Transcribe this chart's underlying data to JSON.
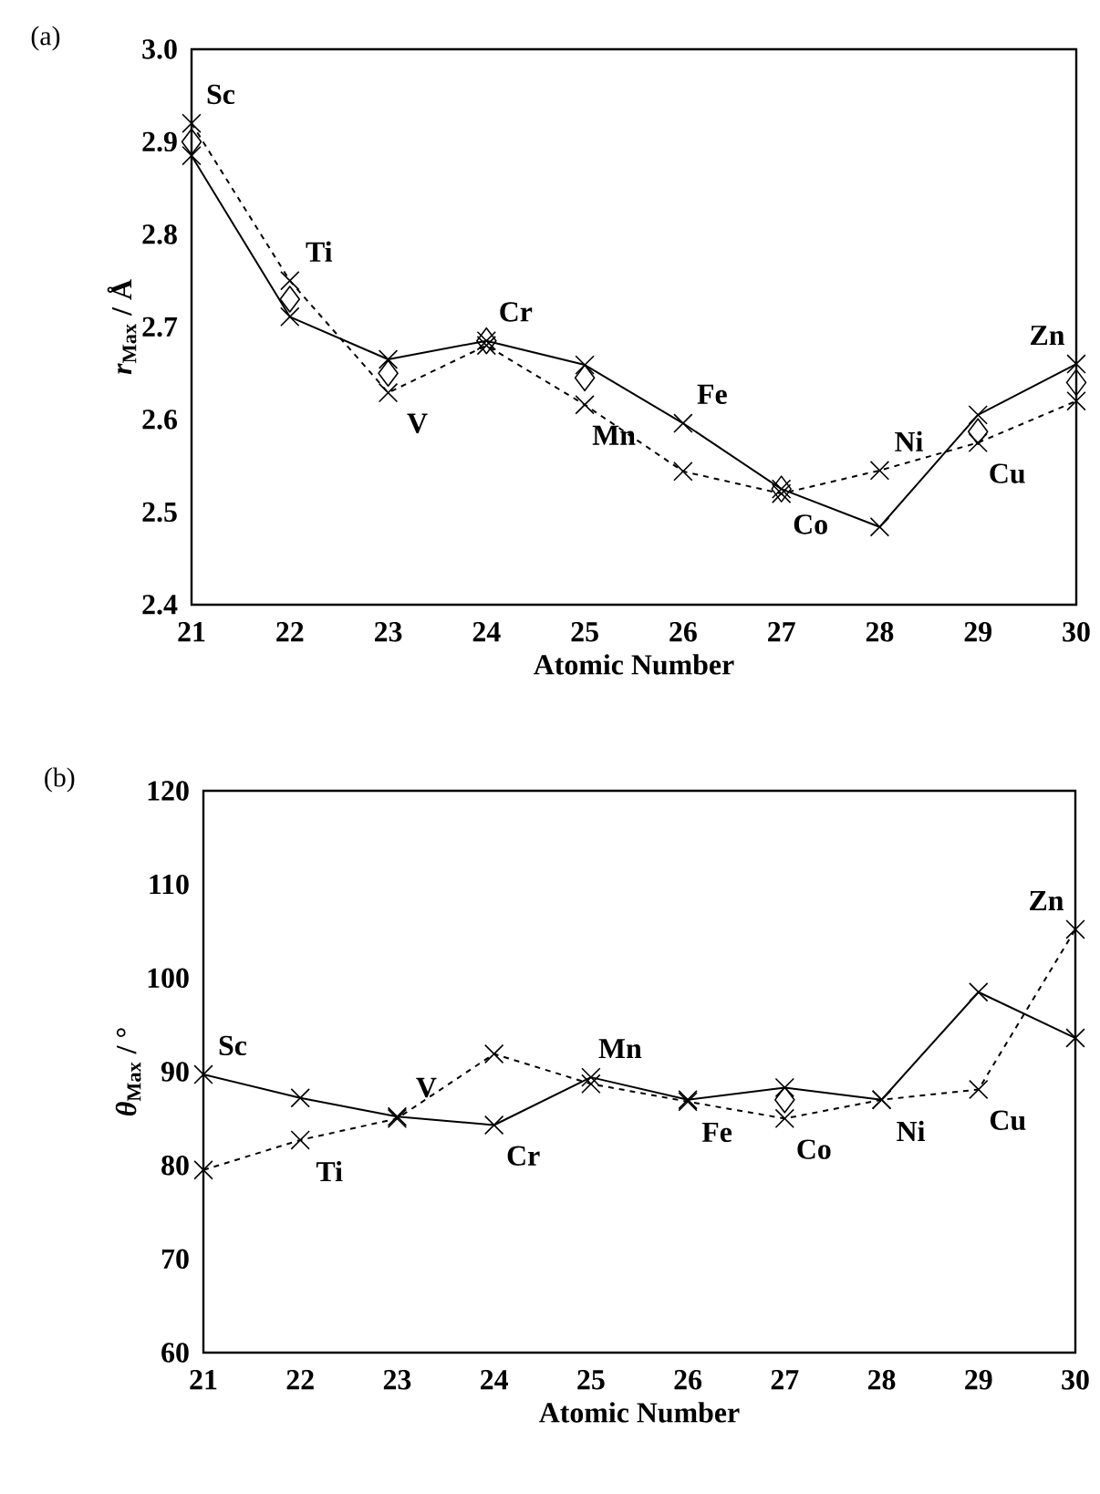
{
  "chart_data": [
    {
      "type": "line",
      "title": "(a)",
      "xlabel": "Atomic Number",
      "ylabel": "*r*$_{Max}$ / Å",
      "x": [
        21,
        22,
        23,
        24,
        25,
        26,
        27,
        28,
        29,
        30
      ],
      "xlim": [
        21,
        30
      ],
      "xticks": [
        21,
        22,
        23,
        24,
        25,
        26,
        27,
        28,
        29,
        30
      ],
      "ylim": [
        2.4,
        3.0
      ],
      "yticks": [
        2.4,
        2.5,
        2.6,
        2.7,
        2.8,
        2.9,
        {
          "value": 3.0,
          "label": "3.0"
        }
      ],
      "series": [
        {
          "color": "#000000",
          "line_style": "solid",
          "marker": "cross",
          "values": [
            2.885,
            2.711,
            2.665,
            2.685,
            2.659,
            2.596,
            2.525,
            2.484,
            2.605,
            2.66
          ]
        },
        {
          "color": "#000000",
          "line_style": "dashed",
          "marker": "cross",
          "values": [
            2.92,
            2.75,
            2.629,
            2.68,
            2.616,
            2.544,
            2.52,
            2.545,
            2.575,
            2.62
          ]
        },
        {
          "type": "scatter",
          "color": "#000000",
          "marker": "diamond",
          "values": [
            2.9,
            2.73,
            2.65,
            2.685,
            2.645,
            null,
            2.525,
            null,
            2.587,
            2.64
          ]
        }
      ],
      "annotations": [
        {
          "text": "Sc",
          "x": 21,
          "y": 2.92
        },
        {
          "text": "Ti",
          "x": 22,
          "y": 2.75
        },
        {
          "text": "V",
          "x": 23,
          "y": 2.629
        },
        {
          "text": "Cr",
          "x": 24,
          "y": 2.685
        },
        {
          "text": "Mn",
          "x": 25,
          "y": 2.616
        },
        {
          "text": "Fe",
          "x": 26,
          "y": 2.596
        },
        {
          "text": "Co",
          "x": 27,
          "y": 2.52
        },
        {
          "text": "Ni",
          "x": 28,
          "y": 2.545
        },
        {
          "text": "Cu",
          "x": 29,
          "y": 2.575
        },
        {
          "text": "Zn",
          "x": 30,
          "y": 2.66
        }
      ]
    },
    {
      "type": "line",
      "title": "(b)",
      "xlabel": "Atomic Number",
      "ylabel": "*θ*$_{Max}$ / °",
      "x": [
        21,
        22,
        23,
        24,
        25,
        26,
        27,
        28,
        29,
        30
      ],
      "xlim": [
        21,
        30
      ],
      "xticks": [
        21,
        22,
        23,
        24,
        25,
        26,
        27,
        28,
        29,
        30
      ],
      "ylim": [
        60,
        120
      ],
      "yticks": [
        60,
        70,
        80,
        90,
        100,
        110,
        120
      ],
      "series": [
        {
          "color": "#000000",
          "line_style": "solid",
          "marker": "cross",
          "values": [
            89.7,
            87.2,
            85.2,
            84.3,
            89.4,
            87.0,
            88.3,
            87.0,
            98.5,
            93.6
          ]
        },
        {
          "color": "#000000",
          "line_style": "dashed",
          "marker": "cross",
          "values": [
            79.5,
            82.7,
            85.0,
            91.9,
            88.7,
            86.8,
            85.0,
            87.0,
            88.1,
            105.2
          ]
        },
        {
          "type": "scatter",
          "color": "#000000",
          "marker": "diamond",
          "values": [
            null,
            null,
            null,
            null,
            null,
            null,
            87.0,
            null,
            null,
            null
          ]
        }
      ],
      "annotations": [
        {
          "text": "Sc",
          "x": 21,
          "y": 89.7
        },
        {
          "text": "Ti",
          "x": 22,
          "y": 82.7
        },
        {
          "text": "V",
          "x": 23,
          "y": 85.2
        },
        {
          "text": "Cr",
          "x": 24,
          "y": 84.3
        },
        {
          "text": "Mn",
          "x": 25,
          "y": 89.4
        },
        {
          "text": "Fe",
          "x": 26,
          "y": 86.8
        },
        {
          "text": "Co",
          "x": 27,
          "y": 85.0
        },
        {
          "text": "Ni",
          "x": 28,
          "y": 87.0
        },
        {
          "text": "Cu",
          "x": 29,
          "y": 88.1
        },
        {
          "text": "Zn",
          "x": 30,
          "y": 105.2
        }
      ]
    }
  ]
}
